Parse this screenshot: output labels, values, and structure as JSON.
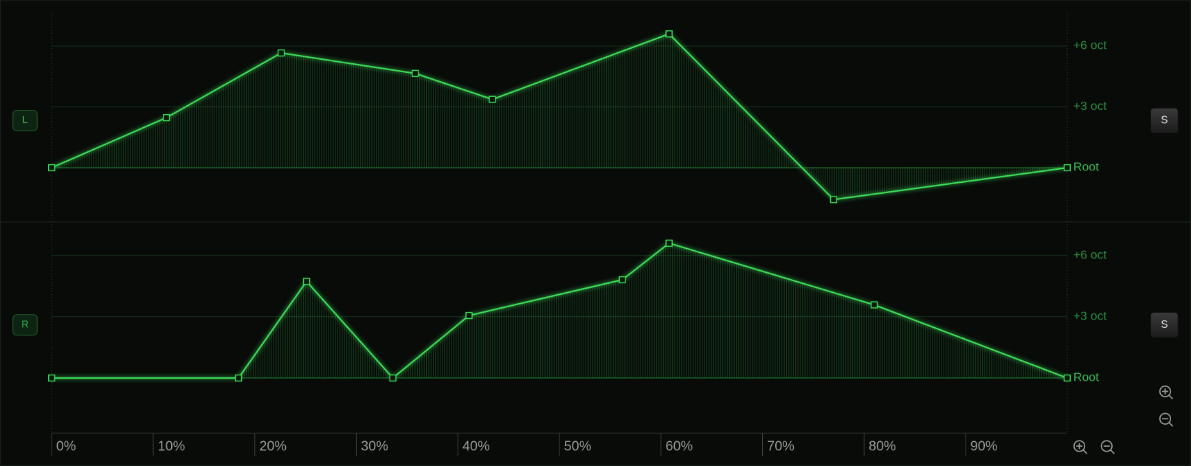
{
  "chart_data": [
    {
      "type": "line",
      "label": "L",
      "solo_button": "S",
      "color": "#3ddc5a",
      "xlim": [
        0,
        100
      ],
      "ylim": [
        -2.6,
        7.7
      ],
      "yticks": [
        {
          "value": 0,
          "label": "Root"
        },
        {
          "value": 3,
          "label": "+3 oct"
        },
        {
          "value": 6,
          "label": "+6 oct"
        }
      ],
      "x": [
        0,
        11.3,
        22.6,
        35.8,
        43.4,
        60.8,
        77.0,
        100
      ],
      "values": [
        0,
        2.47,
        5.66,
        4.65,
        3.37,
        6.6,
        -1.57,
        0
      ]
    },
    {
      "type": "line",
      "label": "R",
      "solo_button": "S",
      "color": "#3ddc5a",
      "xlim": [
        0,
        100
      ],
      "ylim": [
        -2.7,
        7.6
      ],
      "xticks": [
        {
          "value": 0,
          "label": "0%"
        },
        {
          "value": 10,
          "label": "10%"
        },
        {
          "value": 20,
          "label": "20%"
        },
        {
          "value": 30,
          "label": "30%"
        },
        {
          "value": 40,
          "label": "40%"
        },
        {
          "value": 50,
          "label": "50%"
        },
        {
          "value": 60,
          "label": "60%"
        },
        {
          "value": 70,
          "label": "70%"
        },
        {
          "value": 80,
          "label": "80%"
        },
        {
          "value": 90,
          "label": "90%"
        }
      ],
      "yticks": [
        {
          "value": 0,
          "label": "Root"
        },
        {
          "value": 3,
          "label": "+3 oct"
        },
        {
          "value": 6,
          "label": "+6 oct"
        }
      ],
      "x": [
        0,
        18.4,
        25.1,
        33.6,
        41.1,
        56.2,
        60.8,
        81.0,
        100
      ],
      "values": [
        0,
        0,
        4.73,
        0,
        3.06,
        4.81,
        6.6,
        3.58,
        0
      ]
    }
  ]
}
